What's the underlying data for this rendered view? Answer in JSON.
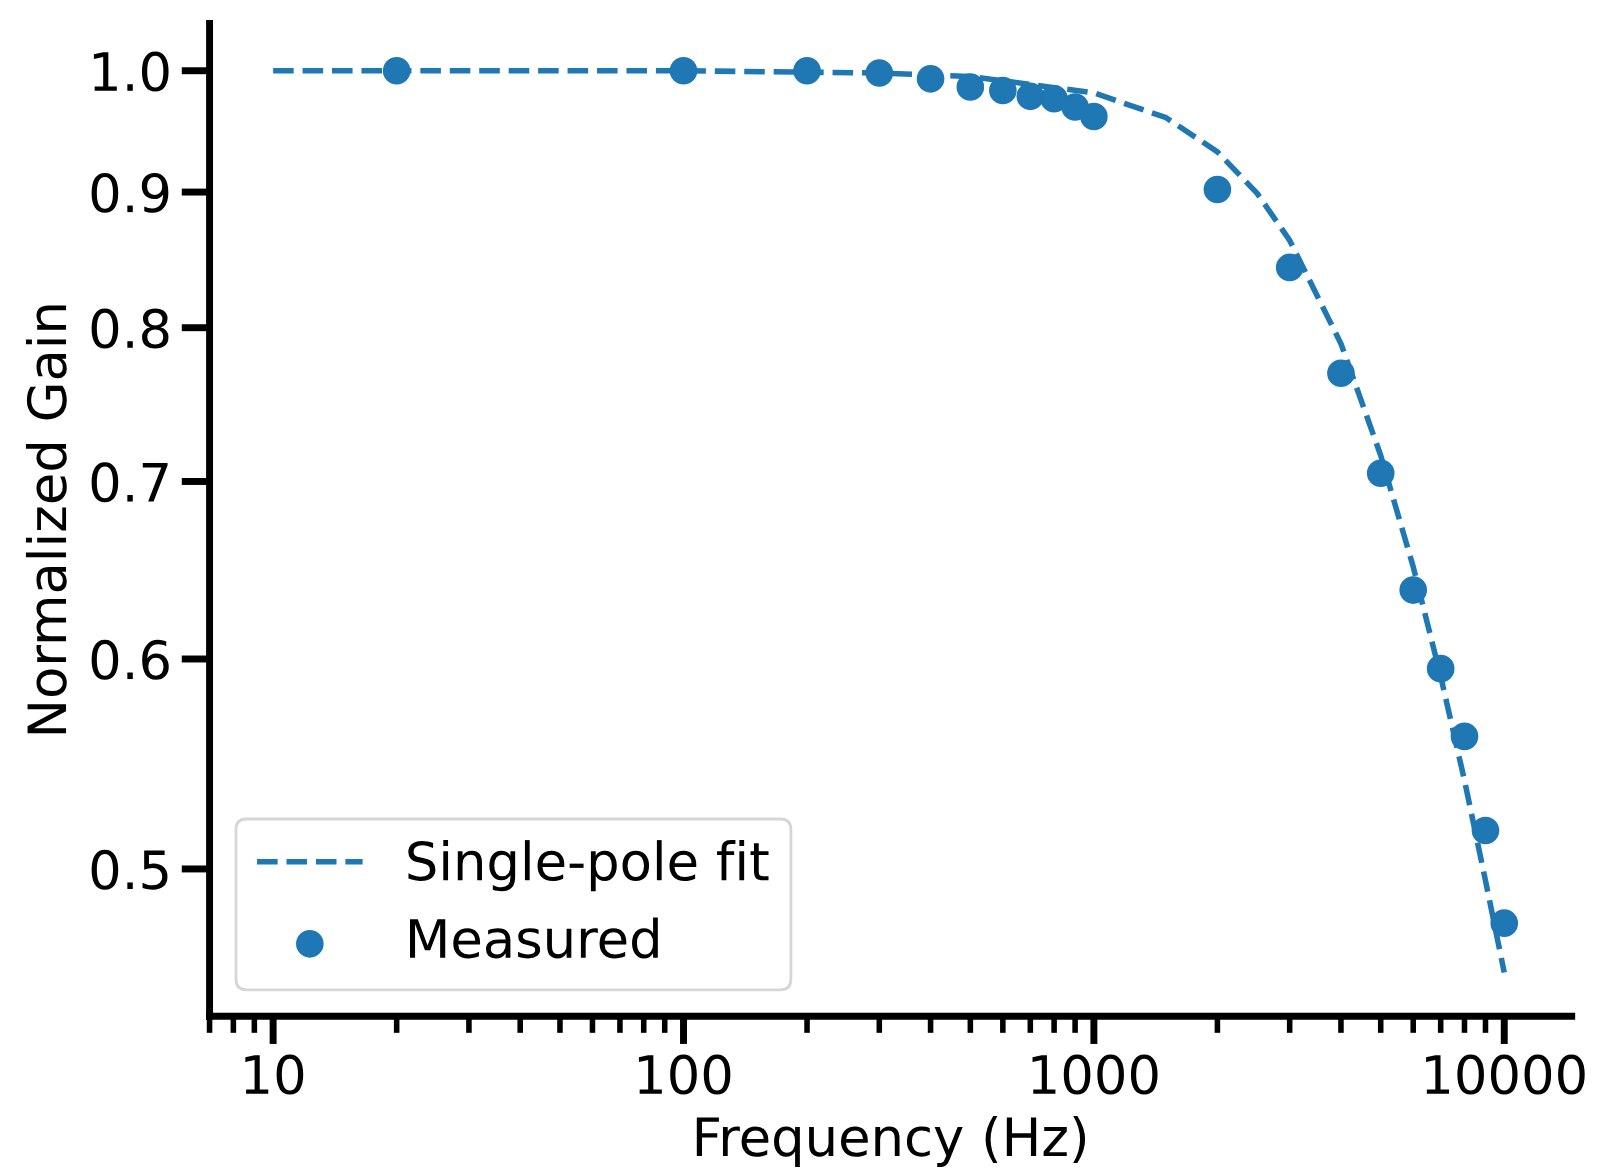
{
  "chart_data": {
    "type": "scatter",
    "xlabel": "Frequency (Hz)",
    "ylabel": "Normalized Gain",
    "log": "xy",
    "xlim": [
      7,
      14600
    ],
    "ylim": [
      0.44,
      1.042
    ],
    "xticks": [
      10,
      100,
      1000,
      10000
    ],
    "yticks": [
      0.5,
      0.6,
      0.7,
      0.8,
      0.9,
      {
        "value": 1.0,
        "label": "1.0"
      }
    ],
    "grid": false,
    "legend": "bottom left",
    "series": [
      {
        "name": "Single-pole fit",
        "type": "line",
        "line_style": "dashed",
        "marker": "none",
        "color": "#1f77b4",
        "x": [
          10,
          100,
          300,
          500,
          1000,
          1500,
          2000,
          2500,
          3000,
          4000,
          5000,
          6000,
          7000,
          8000,
          9000,
          10000
        ],
        "values": [
          1.0,
          1.0,
          0.998,
          0.995,
          0.981,
          0.96,
          0.932,
          0.899,
          0.863,
          0.789,
          0.716,
          0.65,
          0.591,
          0.54,
          0.495,
          0.457
        ]
      },
      {
        "name": "Measured",
        "marker": "circle",
        "color": "#1f77b4",
        "x": [
          20,
          100,
          200,
          300,
          400,
          500,
          600,
          700,
          800,
          900,
          1000,
          2000,
          3000,
          4000,
          5000,
          6000,
          7000,
          8000,
          9000,
          10000
        ],
        "values": [
          1.0,
          1.0,
          1.0,
          0.998,
          0.993,
          0.986,
          0.983,
          0.978,
          0.976,
          0.969,
          0.961,
          0.902,
          0.843,
          0.769,
          0.705,
          0.637,
          0.595,
          0.561,
          0.517,
          0.477
        ]
      }
    ]
  }
}
